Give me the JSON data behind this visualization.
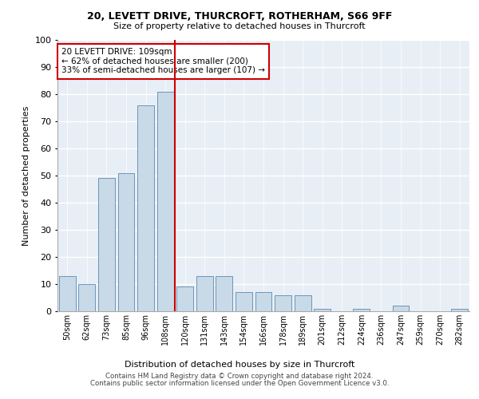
{
  "title1": "20, LEVETT DRIVE, THURCROFT, ROTHERHAM, S66 9FF",
  "title2": "Size of property relative to detached houses in Thurcroft",
  "xlabel": "Distribution of detached houses by size in Thurcroft",
  "ylabel": "Number of detached properties",
  "categories": [
    "50sqm",
    "62sqm",
    "73sqm",
    "85sqm",
    "96sqm",
    "108sqm",
    "120sqm",
    "131sqm",
    "143sqm",
    "154sqm",
    "166sqm",
    "178sqm",
    "189sqm",
    "201sqm",
    "212sqm",
    "224sqm",
    "236sqm",
    "247sqm",
    "259sqm",
    "270sqm",
    "282sqm"
  ],
  "values": [
    13,
    10,
    49,
    51,
    76,
    81,
    9,
    13,
    13,
    7,
    7,
    6,
    6,
    1,
    0,
    1,
    0,
    2,
    0,
    0,
    1
  ],
  "bar_color": "#c8d9e8",
  "bar_edge_color": "#5a8ab0",
  "background_color": "#e8eef5",
  "grid_color": "#ffffff",
  "vline_x": 5.5,
  "vline_color": "#cc0000",
  "annotation_text": "20 LEVETT DRIVE: 109sqm\n← 62% of detached houses are smaller (200)\n33% of semi-detached houses are larger (107) →",
  "annotation_box_color": "#ffffff",
  "annotation_box_edge": "#cc0000",
  "footer1": "Contains HM Land Registry data © Crown copyright and database right 2024.",
  "footer2": "Contains public sector information licensed under the Open Government Licence v3.0.",
  "ylim": [
    0,
    100
  ],
  "yticks": [
    0,
    10,
    20,
    30,
    40,
    50,
    60,
    70,
    80,
    90,
    100
  ]
}
